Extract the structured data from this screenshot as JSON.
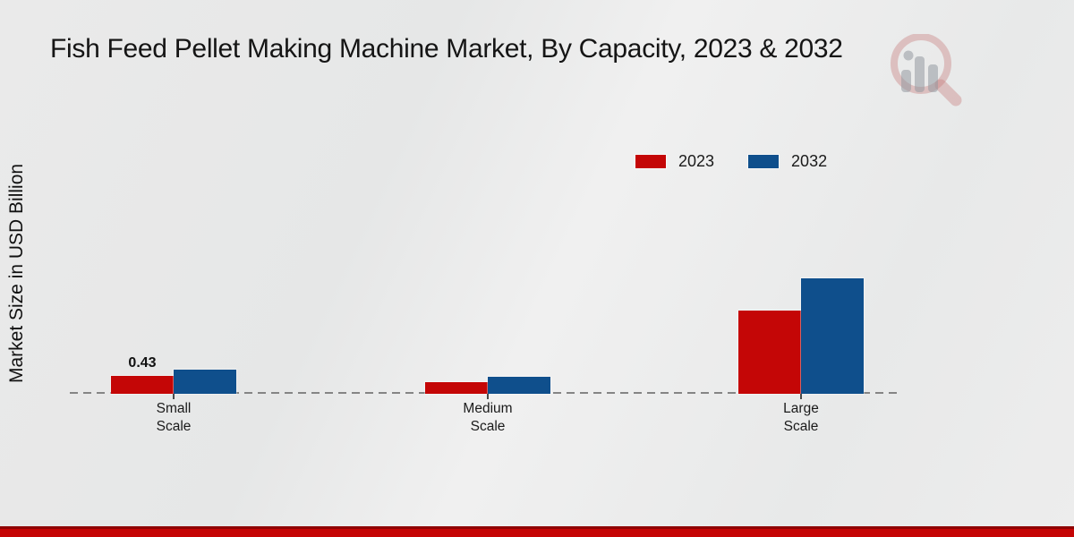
{
  "chart_data": {
    "type": "bar",
    "title": "Fish Feed Pellet Making Machine Market, By Capacity, 2023 & 2032",
    "ylabel": "Market Size in USD Billion",
    "xlabel": "",
    "categories": [
      "Small Scale",
      "Medium Scale",
      "Large Scale"
    ],
    "series": [
      {
        "name": "2023",
        "color": "#c40606",
        "values": [
          0.43,
          0.27,
          2.0
        ]
      },
      {
        "name": "2032",
        "color": "#0f4f8c",
        "values": [
          0.58,
          0.41,
          2.77
        ]
      }
    ],
    "value_labels": [
      {
        "series": "2023",
        "category": "Small Scale",
        "text": "0.43"
      }
    ],
    "ylim": [
      0,
      3
    ],
    "grid": false,
    "y_axis_ticks_visible": false,
    "baseline_style": "dashed",
    "legend_position": "top-right"
  },
  "watermark": {
    "icon": "magnifier-bar-chart-logo"
  },
  "footer": {
    "accent_color": "#c50404",
    "accent_dark": "#8f0202"
  }
}
